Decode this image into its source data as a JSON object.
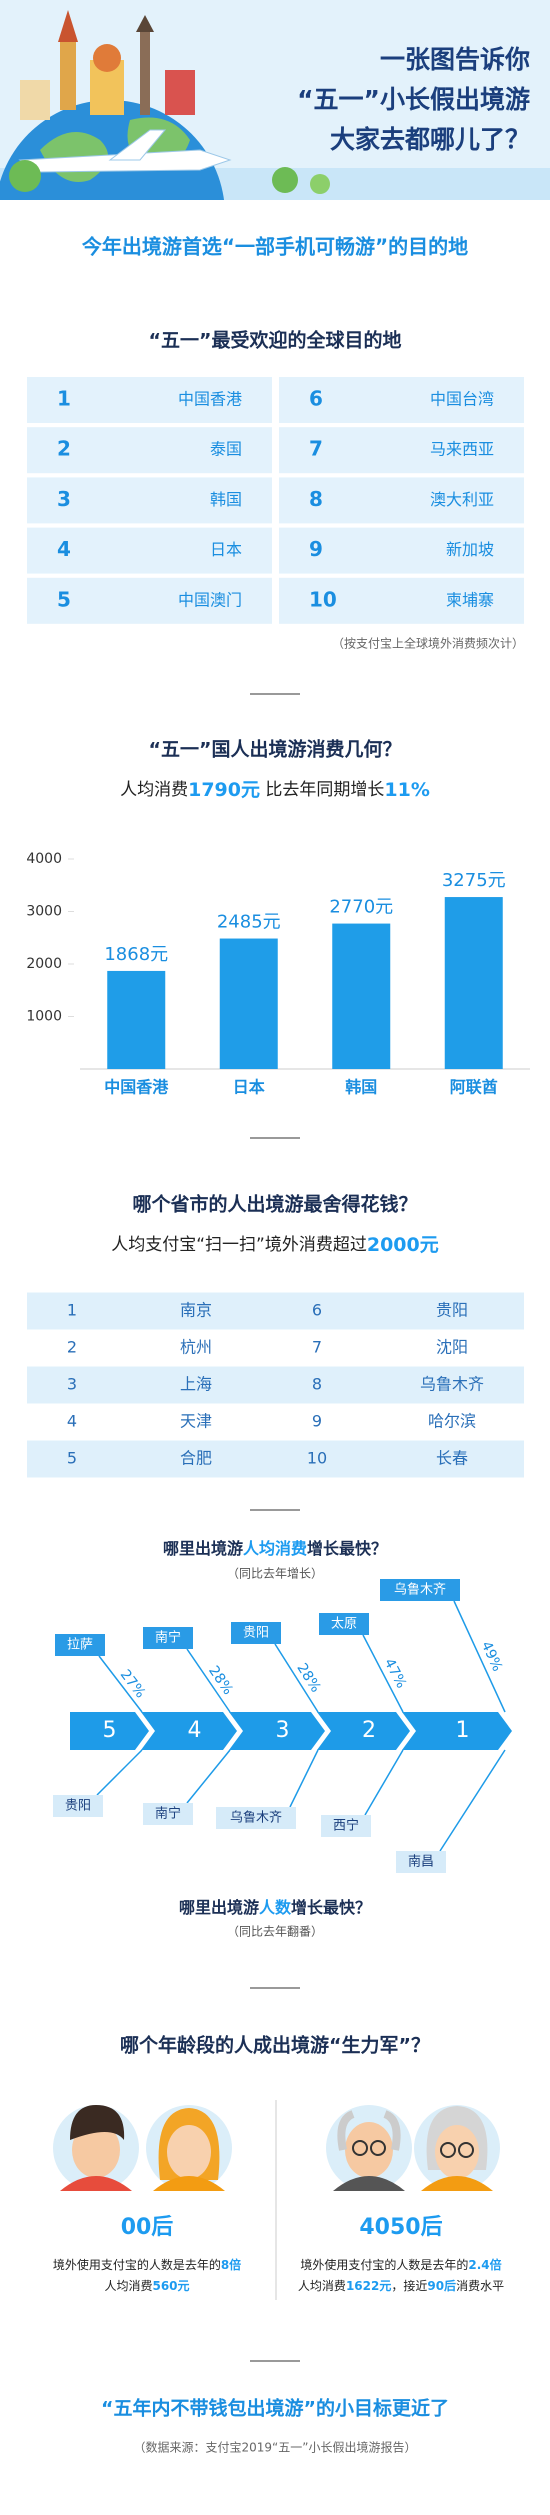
{
  "header": {
    "title_lines": [
      "一张图告诉你",
      "“五一”小长假出境游",
      "大家去都哪儿了？"
    ]
  },
  "headline": "今年出境游首选“一部手机可畅游”的目的地",
  "destinations": {
    "title": "“五一”最受欢迎的全球目的地",
    "rows": [
      [
        "1",
        "中国香港"
      ],
      [
        "2",
        "泰国"
      ],
      [
        "3",
        "韩国"
      ],
      [
        "4",
        "日本"
      ],
      [
        "5",
        "中国澳门"
      ],
      [
        "6",
        "中国台湾"
      ],
      [
        "7",
        "马来西亚"
      ],
      [
        "8",
        "澳大利亚"
      ],
      [
        "9",
        "新加坡"
      ],
      [
        "10",
        "柬埔寨"
      ]
    ],
    "note": "（按支付宝上全球境外消费频次计）"
  },
  "spending": {
    "title": "“五一”国人出境游消费几何？",
    "summary": [
      "人均消费",
      "1790元",
      "  比去年同期增长",
      "11%"
    ]
  },
  "chart_data": {
    "type": "bar",
    "categories": [
      "中国香港",
      "日本",
      "韩国",
      "阿联酋"
    ],
    "values": [
      1868,
      2485,
      2770,
      3275
    ],
    "value_labels": [
      "1868元",
      "2485元",
      "2770元",
      "3275元"
    ],
    "color": "#1f9de8",
    "ylim": [
      0,
      4000
    ],
    "yticks": [
      1000,
      2000,
      3000,
      4000
    ]
  },
  "provinces": {
    "title": "哪个省市的人出境游最舍得花钱？",
    "summary": [
      "人均支付宝“扫一扫”境外消费超过",
      "2000元"
    ],
    "rows": [
      [
        "1",
        "南京",
        "6",
        "贵阳"
      ],
      [
        "2",
        "杭州",
        "7",
        "沈阳"
      ],
      [
        "3",
        "上海",
        "8",
        "乌鲁木齐"
      ],
      [
        "4",
        "天津",
        "9",
        "哈尔滨"
      ],
      [
        "5",
        "合肥",
        "10",
        "长春"
      ]
    ]
  },
  "growth": {
    "title": [
      "哪里出境游",
      "人均消费",
      "增长最快？"
    ],
    "note": "（同比去年增长）",
    "ranks": [
      "5",
      "4",
      "3",
      "2",
      "1"
    ],
    "spending_cities": [
      "拉萨",
      "南宁",
      "贵阳",
      "太原",
      "乌鲁木齐"
    ],
    "spending_growth": [
      "27%",
      "28%",
      "28%",
      "47%",
      "49%"
    ],
    "visitor_cities": [
      "贵阳",
      "南宁",
      "乌鲁木齐",
      "西宁",
      "南昌"
    ],
    "visitor_title": [
      "哪里出境游",
      "人数",
      "增长最快？"
    ],
    "visitor_note": "（同比去年翻番）"
  },
  "age": {
    "title": "哪个年龄段的人成出境游“生力军”？",
    "groups": [
      {
        "label": "00后",
        "lines": [
          [
            "境外使用支付宝的人数是去年的",
            "8倍"
          ],
          [
            "人均消费",
            "560元"
          ]
        ]
      },
      {
        "label": "4050后",
        "lines": [
          [
            "境外使用支付宝的人数是去年的",
            "2.4倍"
          ],
          [
            "人均消费",
            "1622元",
            "，接近",
            "90后",
            "消费水平"
          ]
        ]
      }
    ]
  },
  "footer": {
    "slogan": "“五年内不带钱包出境游”的小目标更近了",
    "source": "（数据来源：支付宝2019“五一”小长假出境游报告）"
  }
}
